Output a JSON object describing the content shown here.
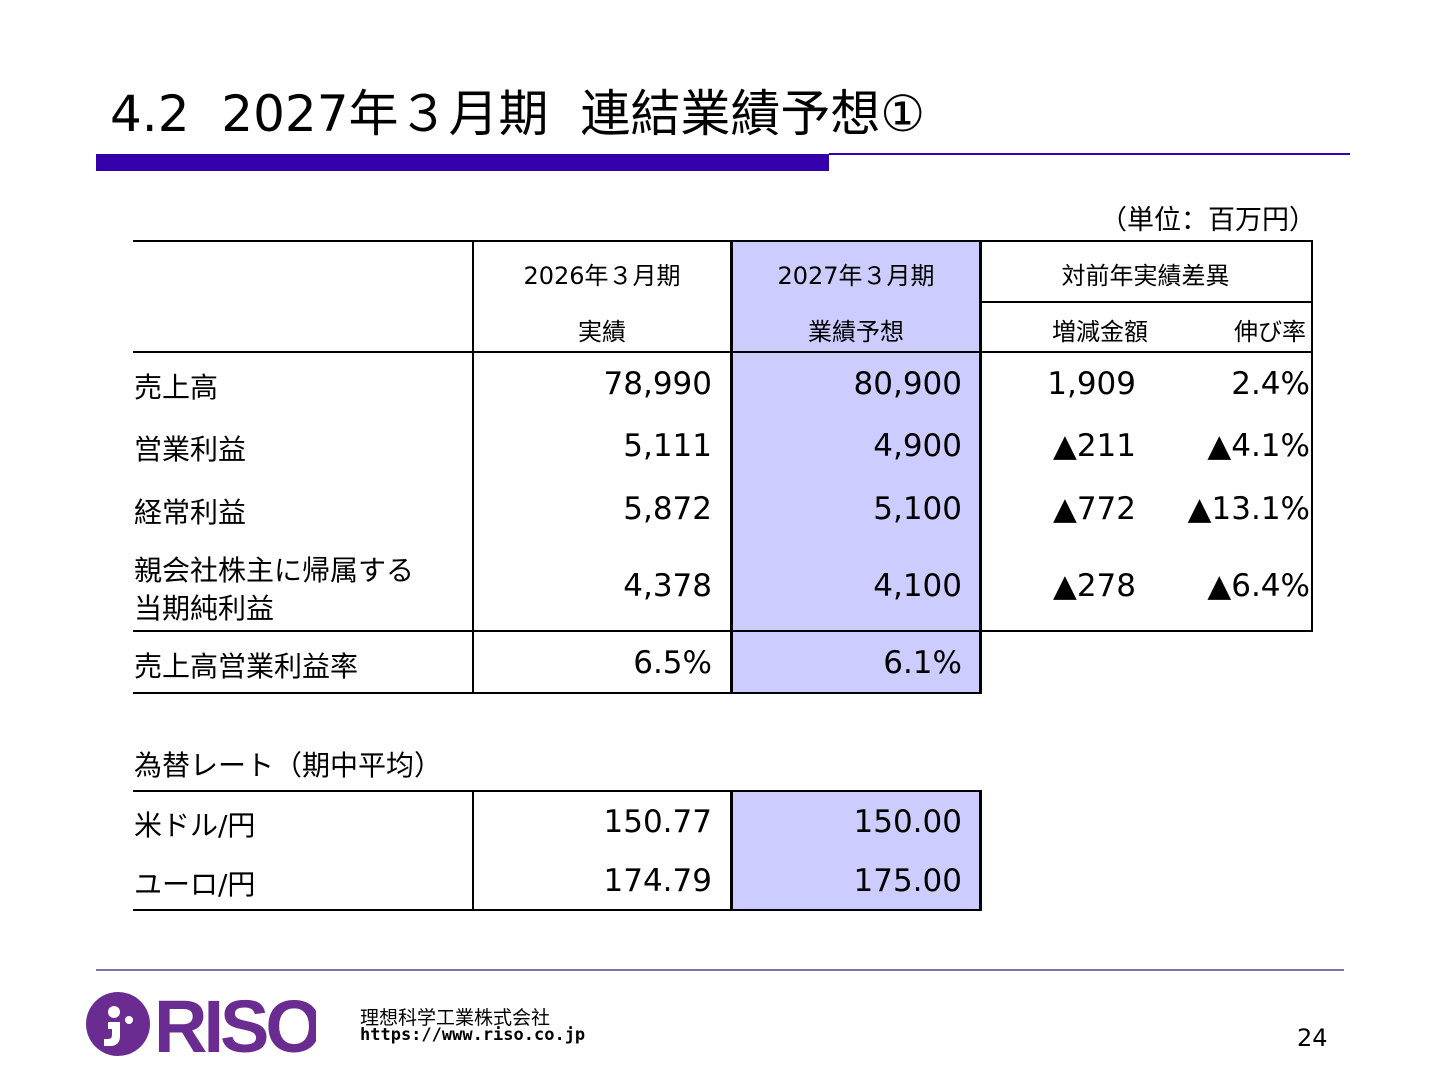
{
  "header": {
    "title": "4.2  2027年３月期  連結業績予想①",
    "unit_note": "（単位：百万円）"
  },
  "table": {
    "columns": {
      "prev_year": "2026年３月期",
      "prev_sub": "実績",
      "forecast_year": "2027年３月期",
      "forecast_sub": "業績予想",
      "diff_group": "対前年実績差異",
      "diff_amount": "増減金額",
      "growth": "伸び率"
    },
    "rows": [
      {
        "label": "売上高",
        "prev": "78,990",
        "forecast": "80,900",
        "diff": "1,909",
        "growth": "2.4%"
      },
      {
        "label": "営業利益",
        "prev": "5,111",
        "forecast": "4,900",
        "diff": "▲211",
        "growth": "▲4.1%"
      },
      {
        "label": "経常利益",
        "prev": "5,872",
        "forecast": "5,100",
        "diff": "▲772",
        "growth": "▲13.1%"
      },
      {
        "label_line1": "親会社株主に帰属する",
        "label_line2": "当期純利益",
        "prev": "4,378",
        "forecast": "4,100",
        "diff": "▲278",
        "growth": "▲6.4%"
      }
    ],
    "margin_row": {
      "label": "売上高営業利益率",
      "prev": "6.5%",
      "forecast": "6.1%"
    }
  },
  "fx": {
    "title": "為替レート（期中平均）",
    "rows": [
      {
        "label": "米ドル/円",
        "prev": "150.77",
        "forecast": "150.00"
      },
      {
        "label": "ユーロ/円",
        "prev": "174.79",
        "forecast": "175.00"
      }
    ]
  },
  "footer": {
    "logo_text": "RISO",
    "company": "理想科学工業株式会社",
    "url": "https://www.riso.co.jp",
    "page": "24"
  },
  "colors": {
    "accent": "#3300aa",
    "highlight": "#ccccff",
    "logo": "#6a2c91"
  }
}
